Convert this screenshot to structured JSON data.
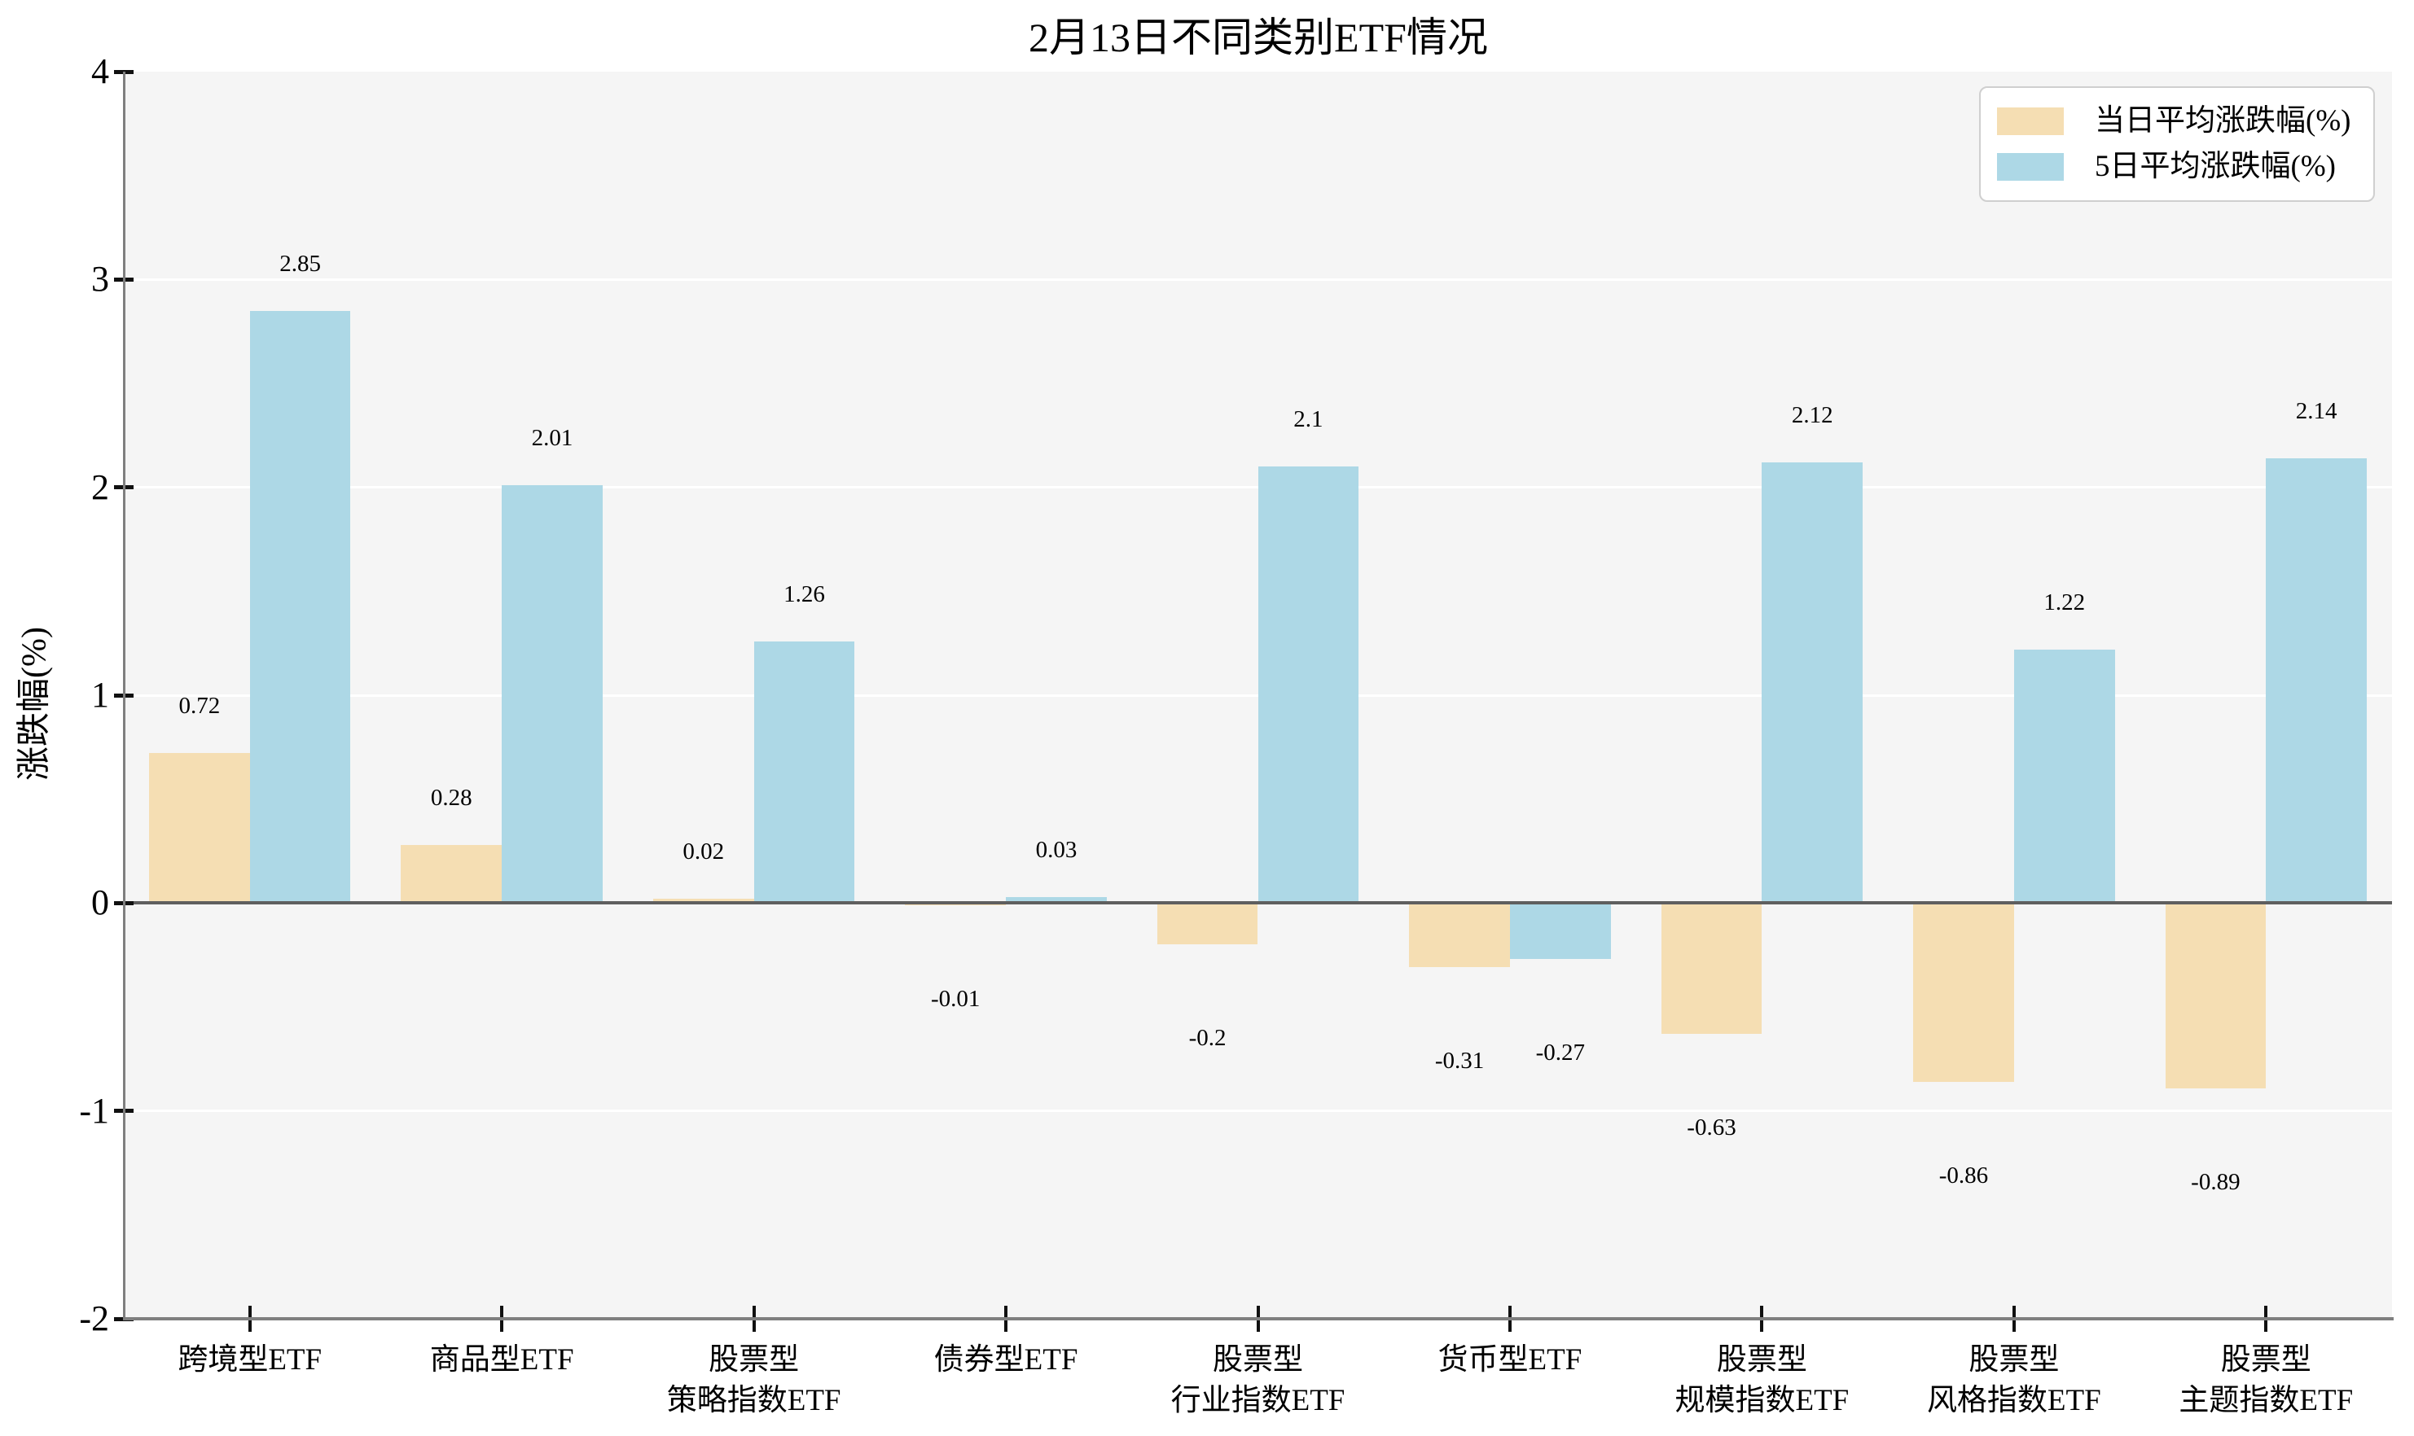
{
  "figure": {
    "background": "#ffffff",
    "plot_background": "#f5f5f5"
  },
  "chart_data": {
    "type": "bar",
    "title": "2月13日不同类别ETF情况",
    "xlabel": "",
    "ylabel": "涨跌幅(%)",
    "ylim": [
      -2,
      4
    ],
    "yticks": [
      4,
      3,
      2,
      1,
      0,
      -1,
      -2
    ],
    "grid": "horizontal white gridlines on light-gray plot background",
    "legend_position": "upper-right",
    "bar_width_fraction": 0.4,
    "categories": [
      "跨境型ETF",
      "商品型ETF",
      "股票型策略指数ETF",
      "债券型ETF",
      "股票型行业指数ETF",
      "货币型ETF",
      "股票型规模指数ETF",
      "股票型风格指数ETF",
      "股票型主题指数ETF"
    ],
    "category_lines": [
      [
        "跨境型ETF"
      ],
      [
        "商品型ETF"
      ],
      [
        "股票型",
        "策略指数ETF"
      ],
      [
        "债券型ETF"
      ],
      [
        "股票型",
        "行业指数ETF"
      ],
      [
        "货币型ETF"
      ],
      [
        "股票型",
        "规模指数ETF"
      ],
      [
        "股票型",
        "风格指数ETF"
      ],
      [
        "股票型",
        "主题指数ETF"
      ]
    ],
    "series": [
      {
        "name": "当日平均涨跌幅(%)",
        "color": "#f5deb3",
        "values": [
          0.72,
          0.28,
          0.02,
          -0.01,
          -0.2,
          -0.31,
          -0.63,
          -0.86,
          -0.89
        ],
        "labels": [
          "0.72",
          "0.28",
          "0.02",
          "-0.01",
          "-0.2",
          "-0.31",
          "-0.63",
          "-0.86",
          "-0.89"
        ]
      },
      {
        "name": "5日平均涨跌幅(%)",
        "color": "#add8e6",
        "values": [
          2.85,
          2.01,
          1.26,
          0.03,
          2.1,
          -0.27,
          2.12,
          1.22,
          2.14
        ],
        "labels": [
          "2.85",
          "2.01",
          "1.26",
          "0.03",
          "2.1",
          "-0.27",
          "2.12",
          "1.22",
          "2.14"
        ]
      }
    ],
    "colors": {
      "grid": "#ffffff",
      "spine": "#7f7f7f",
      "zero_line": "#5f5f5f",
      "tick": "#111111",
      "text": "#000000",
      "legend_border": "#cfcfcf",
      "legend_background": "#ffffff"
    }
  }
}
